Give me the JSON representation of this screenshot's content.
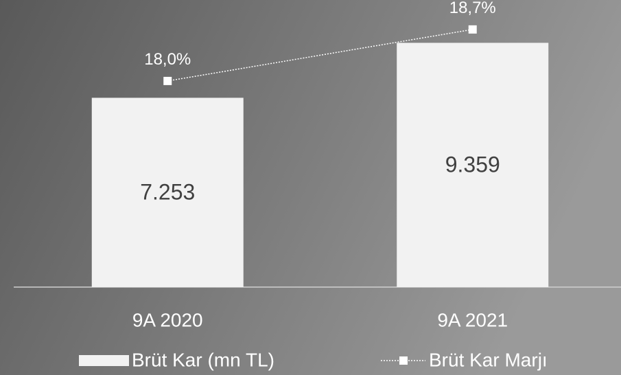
{
  "chart_data": {
    "type": "bar",
    "categories": [
      "9A 2020",
      "9A 2021"
    ],
    "series": [
      {
        "name": "Brüt Kar (mn TL)",
        "type": "bar",
        "color": "#f2f2f2",
        "values": [
          7253,
          9359
        ],
        "value_labels": [
          "7.253",
          "9.359"
        ]
      },
      {
        "name": "Brüt Kar Marjı",
        "type": "line",
        "axis": "y2",
        "color": "#ffffff",
        "values": [
          18.0,
          18.7
        ],
        "value_labels": [
          "18,0%",
          "18,7%"
        ]
      }
    ],
    "ylim": [
      0,
      11000
    ],
    "y2lim": [
      15.2,
      19.1
    ],
    "legend": "bottom"
  }
}
